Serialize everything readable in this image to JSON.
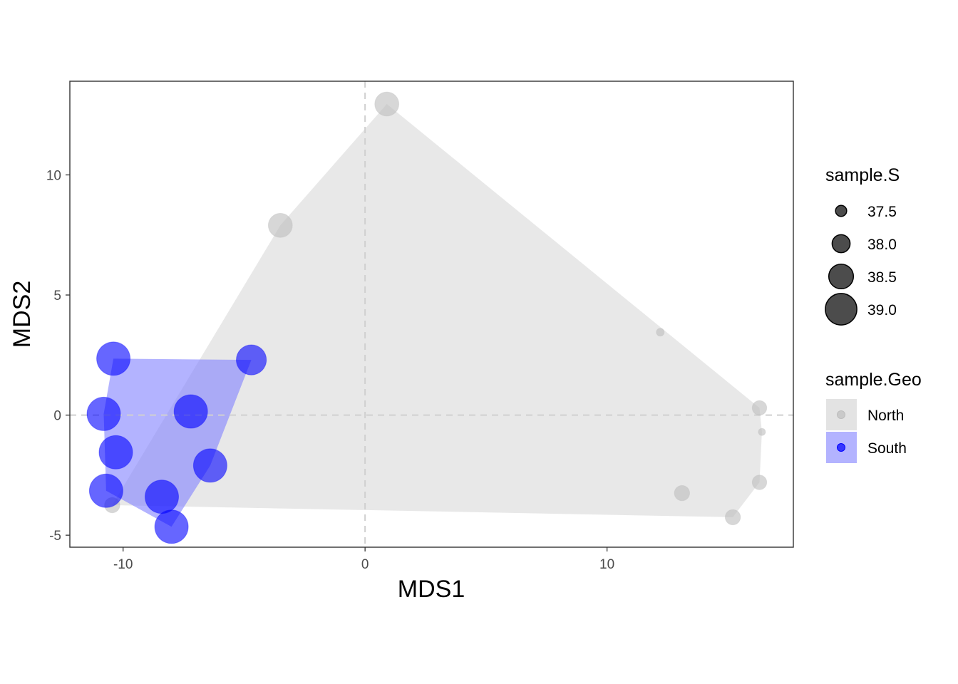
{
  "chart_data": {
    "type": "scatter",
    "title": "",
    "xlabel": "MDS1",
    "ylabel": "MDS2",
    "xlim": [
      -12.2,
      17.7
    ],
    "ylim": [
      -5.5,
      13.9
    ],
    "xticks": [
      -10,
      0,
      10
    ],
    "yticks": [
      -5,
      0,
      5,
      10
    ],
    "xtick_labels": [
      "-10",
      "0",
      "10"
    ],
    "ytick_labels": [
      "-5",
      "0",
      "5",
      "10"
    ],
    "reference_lines": {
      "x": 0,
      "y": 0,
      "style": "dashed"
    },
    "grid": false,
    "hull_fill": true,
    "size_variable": "sample.S",
    "color_variable": "sample.Geo",
    "series": [
      {
        "name": "North",
        "color": "#bdbdbd",
        "hull_color": "#d9d9d9",
        "points": [
          {
            "x": 0.9,
            "y": 12.95,
            "s": 38.45
          },
          {
            "x": -3.5,
            "y": 7.9,
            "s": 38.45
          },
          {
            "x": 12.2,
            "y": 3.45,
            "s": 37.25
          },
          {
            "x": 16.3,
            "y": 0.3,
            "s": 37.75
          },
          {
            "x": 16.4,
            "y": -0.7,
            "s": 37.2
          },
          {
            "x": 16.3,
            "y": -2.8,
            "s": 37.75
          },
          {
            "x": 13.1,
            "y": -3.25,
            "s": 37.8
          },
          {
            "x": 15.2,
            "y": -4.25,
            "s": 37.8
          },
          {
            "x": -10.45,
            "y": -3.75,
            "s": 37.8
          }
        ]
      },
      {
        "name": "South",
        "color": "#0000ff",
        "hull_color": "#8080ff",
        "points": [
          {
            "x": -10.4,
            "y": 2.35,
            "s": 39.15
          },
          {
            "x": -4.7,
            "y": 2.3,
            "s": 38.9
          },
          {
            "x": -7.2,
            "y": 0.15,
            "s": 39.15
          },
          {
            "x": -10.8,
            "y": 0.05,
            "s": 39.15
          },
          {
            "x": -10.3,
            "y": -1.55,
            "s": 39.15
          },
          {
            "x": -6.4,
            "y": -2.1,
            "s": 39.15
          },
          {
            "x": -10.7,
            "y": -3.15,
            "s": 39.15
          },
          {
            "x": -8.4,
            "y": -3.4,
            "s": 39.15
          },
          {
            "x": -8.0,
            "y": -4.65,
            "s": 39.15
          }
        ]
      }
    ],
    "legend": {
      "placement": "right",
      "size": {
        "title": "sample.S",
        "entries": [
          {
            "label": "37.5",
            "value": 37.5
          },
          {
            "label": "38.0",
            "value": 38.0
          },
          {
            "label": "38.5",
            "value": 38.5
          },
          {
            "label": "39.0",
            "value": 39.0
          }
        ]
      },
      "color": {
        "title": "sample.Geo",
        "entries": [
          {
            "label": "North",
            "color": "#bdbdbd",
            "key_fill": "#e3e3e3"
          },
          {
            "label": "South",
            "color": "#0000ff",
            "key_fill": "#b3b3ff"
          }
        ]
      }
    }
  }
}
